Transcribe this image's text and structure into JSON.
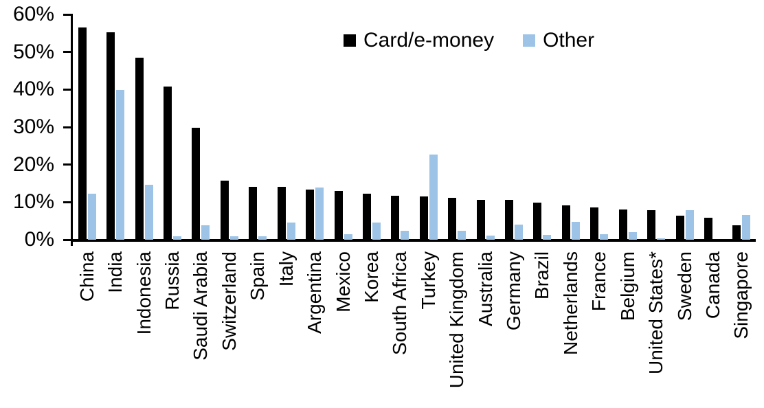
{
  "chart_data": {
    "type": "bar",
    "title": "",
    "xlabel": "",
    "ylabel": "",
    "categories": [
      "China",
      "India",
      "Indonesia",
      "Russia",
      "Saudi Arabia",
      "Switzerland",
      "Spain",
      "Italy",
      "Argentina",
      "Mexico",
      "Korea",
      "South Africa",
      "Turkey",
      "United Kingdom",
      "Australia",
      "Germany",
      "Brazil",
      "Netherlands",
      "France",
      "Belgium",
      "United States*",
      "Sweden",
      "Canada",
      "Singapore"
    ],
    "series": [
      {
        "name": "Card/e-money",
        "color": "#000000",
        "values": [
          56.5,
          55.2,
          48.4,
          40.8,
          29.9,
          15.7,
          14.1,
          14.0,
          13.4,
          12.9,
          12.3,
          11.8,
          11.6,
          11.1,
          10.7,
          10.6,
          9.9,
          9.2,
          8.6,
          8.0,
          7.8,
          6.4,
          5.9,
          3.9
        ]
      },
      {
        "name": "Other",
        "color": "#9DC3E6",
        "values": [
          12.3,
          39.8,
          14.7,
          1.0,
          3.8,
          0.9,
          1.0,
          4.5,
          13.9,
          1.4,
          4.5,
          2.4,
          22.6,
          2.4,
          1.1,
          4.0,
          1.2,
          4.8,
          1.5,
          2.0,
          0.3,
          7.9,
          0,
          6.5
        ]
      }
    ],
    "ylim": [
      0,
      60
    ],
    "ytick_labels": [
      "0%",
      "10%",
      "20%",
      "30%",
      "40%",
      "50%",
      "60%"
    ],
    "grid": false,
    "legend_position": "top-center",
    "bar_orientation": "vertical",
    "category_label_rotation_degrees": 90
  }
}
